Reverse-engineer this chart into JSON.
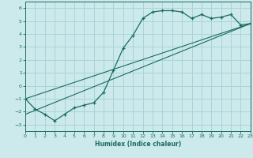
{
  "xlabel": "Humidex (Indice chaleur)",
  "background_color": "#cce9ec",
  "grid_color": "#aad4d8",
  "line_color": "#1a6b5e",
  "x_min": 0,
  "x_max": 23,
  "y_min": -3.5,
  "y_max": 6.5,
  "yticks": [
    -3,
    -2,
    -1,
    0,
    1,
    2,
    3,
    4,
    5,
    6
  ],
  "xticks": [
    0,
    1,
    2,
    3,
    4,
    5,
    6,
    7,
    8,
    9,
    10,
    11,
    12,
    13,
    14,
    15,
    16,
    17,
    18,
    19,
    20,
    21,
    22,
    23
  ],
  "curve1_x": [
    0,
    1,
    2,
    3,
    4,
    5,
    6,
    7,
    8,
    9,
    10,
    11,
    12,
    13,
    14,
    15,
    16,
    17,
    18,
    19,
    20,
    21,
    22,
    23
  ],
  "curve1_y": [
    -1.0,
    -1.8,
    -2.2,
    -2.7,
    -2.2,
    -1.7,
    -1.5,
    -1.3,
    -0.5,
    1.2,
    2.9,
    3.9,
    5.2,
    5.7,
    5.8,
    5.8,
    5.7,
    5.2,
    5.5,
    5.2,
    5.3,
    5.5,
    4.7,
    4.8
  ],
  "line1_x": [
    0,
    23
  ],
  "line1_y": [
    -1.0,
    4.8
  ],
  "line2_x": [
    0,
    23
  ],
  "line2_y": [
    -2.2,
    4.8
  ]
}
